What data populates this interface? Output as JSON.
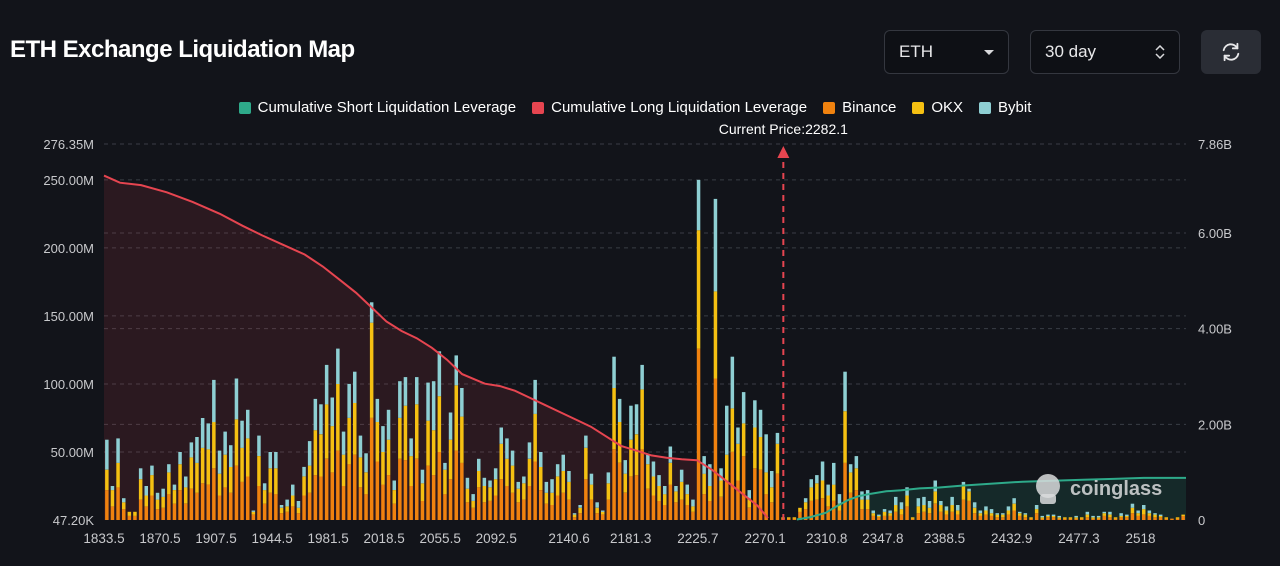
{
  "page": {
    "title": "ETH Exchange Liquidation Map"
  },
  "controls": {
    "asset_value": "ETH",
    "period_value": "30 day"
  },
  "legend": {
    "items": [
      {
        "label": "Cumulative Short Liquidation Leverage",
        "color": "#2eaa8a"
      },
      {
        "label": "Cumulative Long Liquidation Leverage",
        "color": "#e64550"
      },
      {
        "label": "Binance",
        "color": "#f0820f"
      },
      {
        "label": "OKX",
        "color": "#f5c012"
      },
      {
        "label": "Bybit",
        "color": "#8ecfd3"
      }
    ]
  },
  "watermark": {
    "text": "coinglass"
  },
  "chart_data": {
    "type": "bar",
    "stacked": true,
    "current_price_label": "Current Price:2282.1",
    "current_price": 2282.1,
    "x_range": [
      1833.5,
      2548
    ],
    "x_tick_labels": [
      "1833.5",
      "1870.5",
      "1907.5",
      "1944.5",
      "1981.5",
      "2018.5",
      "2055.5",
      "2092.5",
      "2140.6",
      "2181.3",
      "2225.7",
      "2270.1",
      "2310.8",
      "2347.8",
      "2388.5",
      "2432.9",
      "2477.3",
      "2518"
    ],
    "y_left_range": [
      0,
      276.35
    ],
    "y_left_ticks": [
      {
        "value": 276.35,
        "label": "276.35M"
      },
      {
        "value": 250,
        "label": "250.00M"
      },
      {
        "value": 200,
        "label": "200.00M"
      },
      {
        "value": 150,
        "label": "150.00M"
      },
      {
        "value": 100,
        "label": "100.00M"
      },
      {
        "value": 50,
        "label": "50.00M"
      },
      {
        "value": 0,
        "label": "47.20K"
      }
    ],
    "y_right_range": [
      0,
      7.86
    ],
    "y_right_ticks": [
      {
        "value": 7.86,
        "label": "7.86B"
      },
      {
        "value": 6,
        "label": "6.00B"
      },
      {
        "value": 4,
        "label": "4.00B"
      },
      {
        "value": 2,
        "label": "2.00B"
      },
      {
        "value": 0,
        "label": "0"
      }
    ],
    "colors": {
      "binance": "#f0820f",
      "okx": "#f5c012",
      "bybit": "#8ecfd3",
      "long": "#e64550",
      "short": "#2eaa8a",
      "grid": "#3a3d45",
      "axis_text": "#c8c9cc",
      "price_line": "#e64550"
    },
    "series_names": [
      "Binance",
      "OKX",
      "Bybit"
    ],
    "bars": [
      [
        22,
        15,
        22
      ],
      [
        10,
        12,
        3
      ],
      [
        24,
        18,
        18
      ],
      [
        8,
        5,
        3
      ],
      [
        3,
        3,
        0
      ],
      [
        3,
        3,
        0
      ],
      [
        15,
        15,
        8
      ],
      [
        10,
        8,
        7
      ],
      [
        18,
        15,
        7
      ],
      [
        8,
        7,
        5
      ],
      [
        9,
        8,
        6
      ],
      [
        19,
        16,
        6
      ],
      [
        12,
        10,
        4
      ],
      [
        22,
        19,
        9
      ],
      [
        12,
        12,
        8
      ],
      [
        23,
        23,
        11
      ],
      [
        20,
        22,
        19
      ],
      [
        27,
        26,
        22
      ],
      [
        26,
        26,
        19
      ],
      [
        38,
        34,
        31
      ],
      [
        18,
        16,
        17
      ],
      [
        24,
        24,
        17
      ],
      [
        20,
        19,
        16
      ],
      [
        40,
        34,
        30
      ],
      [
        28,
        25,
        20
      ],
      [
        32,
        28,
        21
      ],
      [
        4,
        2,
        1
      ],
      [
        25,
        22,
        15
      ],
      [
        12,
        10,
        5
      ],
      [
        20,
        18,
        12
      ],
      [
        19,
        19,
        12
      ],
      [
        5,
        4,
        2
      ],
      [
        6,
        4,
        5
      ],
      [
        10,
        8,
        8
      ],
      [
        5,
        4,
        5
      ],
      [
        18,
        14,
        7
      ],
      [
        20,
        20,
        18
      ],
      [
        33,
        33,
        23
      ],
      [
        32,
        31,
        22
      ],
      [
        45,
        40,
        29
      ],
      [
        35,
        34,
        21
      ],
      [
        51,
        49,
        26
      ],
      [
        25,
        23,
        17
      ],
      [
        41,
        34,
        25
      ],
      [
        48,
        38,
        23
      ],
      [
        24,
        22,
        16
      ],
      [
        19,
        16,
        14
      ],
      [
        75,
        70,
        15
      ],
      [
        43,
        29,
        17
      ],
      [
        26,
        24,
        19
      ],
      [
        33,
        26,
        22
      ],
      [
        12,
        10,
        7
      ],
      [
        45,
        30,
        27
      ],
      [
        44,
        40,
        21
      ],
      [
        25,
        22,
        13
      ],
      [
        45,
        40,
        20
      ],
      [
        14,
        13,
        10
      ],
      [
        40,
        33,
        28
      ],
      [
        33,
        33,
        36
      ],
      [
        50,
        41,
        33
      ],
      [
        19,
        18,
        5
      ],
      [
        30,
        29,
        20
      ],
      [
        51,
        48,
        22
      ],
      [
        42,
        34,
        21
      ],
      [
        13,
        10,
        8
      ],
      [
        9,
        5,
        5
      ],
      [
        24,
        12,
        9
      ],
      [
        13,
        12,
        6
      ],
      [
        14,
        10,
        5
      ],
      [
        18,
        12,
        8
      ],
      [
        30,
        26,
        12
      ],
      [
        25,
        20,
        15
      ],
      [
        20,
        20,
        11
      ],
      [
        13,
        10,
        5
      ],
      [
        15,
        12,
        5
      ],
      [
        25,
        20,
        12
      ],
      [
        43,
        35,
        25
      ],
      [
        22,
        17,
        11
      ],
      [
        12,
        8,
        8
      ],
      [
        11,
        9,
        10
      ],
      [
        18,
        14,
        9
      ],
      [
        20,
        16,
        12
      ],
      [
        15,
        13,
        8
      ],
      [
        2,
        2,
        1
      ],
      [
        5,
        4,
        2
      ],
      [
        30,
        23,
        9
      ],
      [
        15,
        11,
        8
      ],
      [
        5,
        4,
        4
      ],
      [
        4,
        2,
        1
      ],
      [
        15,
        12,
        8
      ],
      [
        52,
        45,
        23
      ],
      [
        42,
        30,
        17
      ],
      [
        20,
        14,
        10
      ],
      [
        32,
        27,
        25
      ],
      [
        33,
        30,
        22
      ],
      [
        52,
        44,
        18
      ],
      [
        23,
        18,
        7
      ],
      [
        18,
        14,
        11
      ],
      [
        14,
        11,
        8
      ],
      [
        11,
        8,
        6
      ],
      [
        26,
        16,
        12
      ],
      [
        13,
        8,
        4
      ],
      [
        15,
        13,
        9
      ],
      [
        11,
        8,
        7
      ],
      [
        6,
        4,
        5
      ],
      [
        126,
        87,
        37
      ],
      [
        19,
        15,
        13
      ],
      [
        14,
        11,
        16
      ],
      [
        104,
        64,
        68
      ],
      [
        17,
        12,
        9
      ],
      [
        29,
        19,
        36
      ],
      [
        50,
        32,
        38
      ],
      [
        29,
        27,
        12
      ],
      [
        47,
        24,
        23
      ],
      [
        9,
        7,
        6
      ],
      [
        38,
        30,
        20
      ],
      [
        37,
        24,
        20
      ],
      [
        19,
        16,
        28
      ],
      [
        13,
        11,
        12
      ],
      [
        34,
        22,
        8
      ],
      [
        1,
        1,
        0
      ],
      [
        1,
        1,
        0
      ],
      [
        1,
        1,
        0
      ],
      [
        6,
        3,
        0
      ],
      [
        8,
        5,
        3
      ],
      [
        14,
        10,
        6
      ],
      [
        15,
        12,
        6
      ],
      [
        16,
        13,
        14
      ],
      [
        10,
        8,
        8
      ],
      [
        14,
        12,
        16
      ],
      [
        7,
        5,
        7
      ],
      [
        42,
        38,
        29
      ],
      [
        20,
        15,
        6
      ],
      [
        22,
        16,
        9
      ],
      [
        8,
        7,
        6
      ],
      [
        8,
        7,
        7
      ],
      [
        3,
        2,
        2
      ],
      [
        2,
        1,
        1
      ],
      [
        3,
        3,
        2
      ],
      [
        3,
        2,
        2
      ],
      [
        6,
        5,
        6
      ],
      [
        4,
        4,
        5
      ],
      [
        10,
        8,
        6
      ],
      [
        1,
        1,
        0
      ],
      [
        5,
        5,
        6
      ],
      [
        6,
        5,
        6
      ],
      [
        5,
        4,
        5
      ],
      [
        12,
        9,
        8
      ],
      [
        6,
        5,
        3
      ],
      [
        4,
        3,
        3
      ],
      [
        6,
        5,
        6
      ],
      [
        4,
        3,
        4
      ],
      [
        15,
        10,
        3
      ],
      [
        14,
        7,
        2
      ],
      [
        5,
        4,
        4
      ],
      [
        3,
        2,
        2
      ],
      [
        4,
        3,
        3
      ],
      [
        3,
        2,
        3
      ],
      [
        2,
        2,
        1
      ],
      [
        2,
        2,
        1
      ],
      [
        4,
        3,
        3
      ],
      [
        7,
        5,
        4
      ],
      [
        3,
        2,
        1
      ],
      [
        2,
        2,
        1
      ],
      [
        1,
        1,
        0
      ],
      [
        5,
        3,
        3
      ],
      [
        1,
        1,
        1
      ],
      [
        2,
        1,
        1
      ],
      [
        2,
        1,
        1
      ],
      [
        1,
        1,
        1
      ],
      [
        1,
        1,
        0
      ],
      [
        1,
        1,
        0
      ],
      [
        1,
        1,
        1
      ],
      [
        1,
        1,
        0
      ],
      [
        2,
        2,
        2
      ],
      [
        1,
        1,
        1
      ],
      [
        1,
        1,
        1
      ],
      [
        3,
        2,
        1
      ],
      [
        2,
        2,
        2
      ],
      [
        1,
        1,
        0
      ],
      [
        2,
        1,
        2
      ],
      [
        2,
        1,
        1
      ],
      [
        5,
        4,
        3
      ],
      [
        3,
        2,
        2
      ],
      [
        4,
        4,
        3
      ],
      [
        3,
        2,
        2
      ],
      [
        2,
        2,
        1
      ],
      [
        2,
        1,
        1
      ],
      [
        1,
        1,
        0
      ],
      [
        1,
        0,
        0
      ],
      [
        1,
        1,
        0
      ],
      [
        3,
        1,
        0
      ]
    ],
    "long_curve": {
      "x": [
        1833.5,
        1844,
        1858,
        1875,
        1892,
        1910,
        1925,
        1938,
        1952,
        1966,
        1978,
        1990,
        2000,
        2010,
        2020,
        2030,
        2040,
        2050,
        2060,
        2070,
        2085,
        2095,
        2105,
        2115,
        2125,
        2135,
        2145,
        2155,
        2165,
        2175,
        2185,
        2195,
        2205,
        2215,
        2225,
        2235,
        2245,
        2255,
        2265,
        2272
      ],
      "y": [
        7.2,
        7.05,
        7.0,
        6.85,
        6.65,
        6.4,
        6.15,
        5.95,
        5.75,
        5.55,
        5.3,
        5.0,
        4.75,
        4.45,
        4.15,
        3.95,
        3.8,
        3.6,
        3.35,
        3.05,
        2.85,
        2.8,
        2.7,
        2.55,
        2.4,
        2.25,
        2.1,
        1.95,
        1.75,
        1.55,
        1.45,
        1.35,
        1.3,
        1.27,
        1.25,
        1.05,
        0.8,
        0.55,
        0.3,
        0.04
      ]
    },
    "short_curve": {
      "x": [
        2291,
        2300,
        2310,
        2318,
        2325,
        2332,
        2340,
        2350,
        2360,
        2372,
        2385,
        2400,
        2420,
        2440,
        2460,
        2480,
        2500,
        2520,
        2535,
        2548
      ],
      "y": [
        0.01,
        0.06,
        0.15,
        0.3,
        0.42,
        0.5,
        0.55,
        0.6,
        0.62,
        0.66,
        0.68,
        0.72,
        0.76,
        0.8,
        0.82,
        0.84,
        0.86,
        0.88,
        0.88,
        0.88
      ]
    }
  }
}
